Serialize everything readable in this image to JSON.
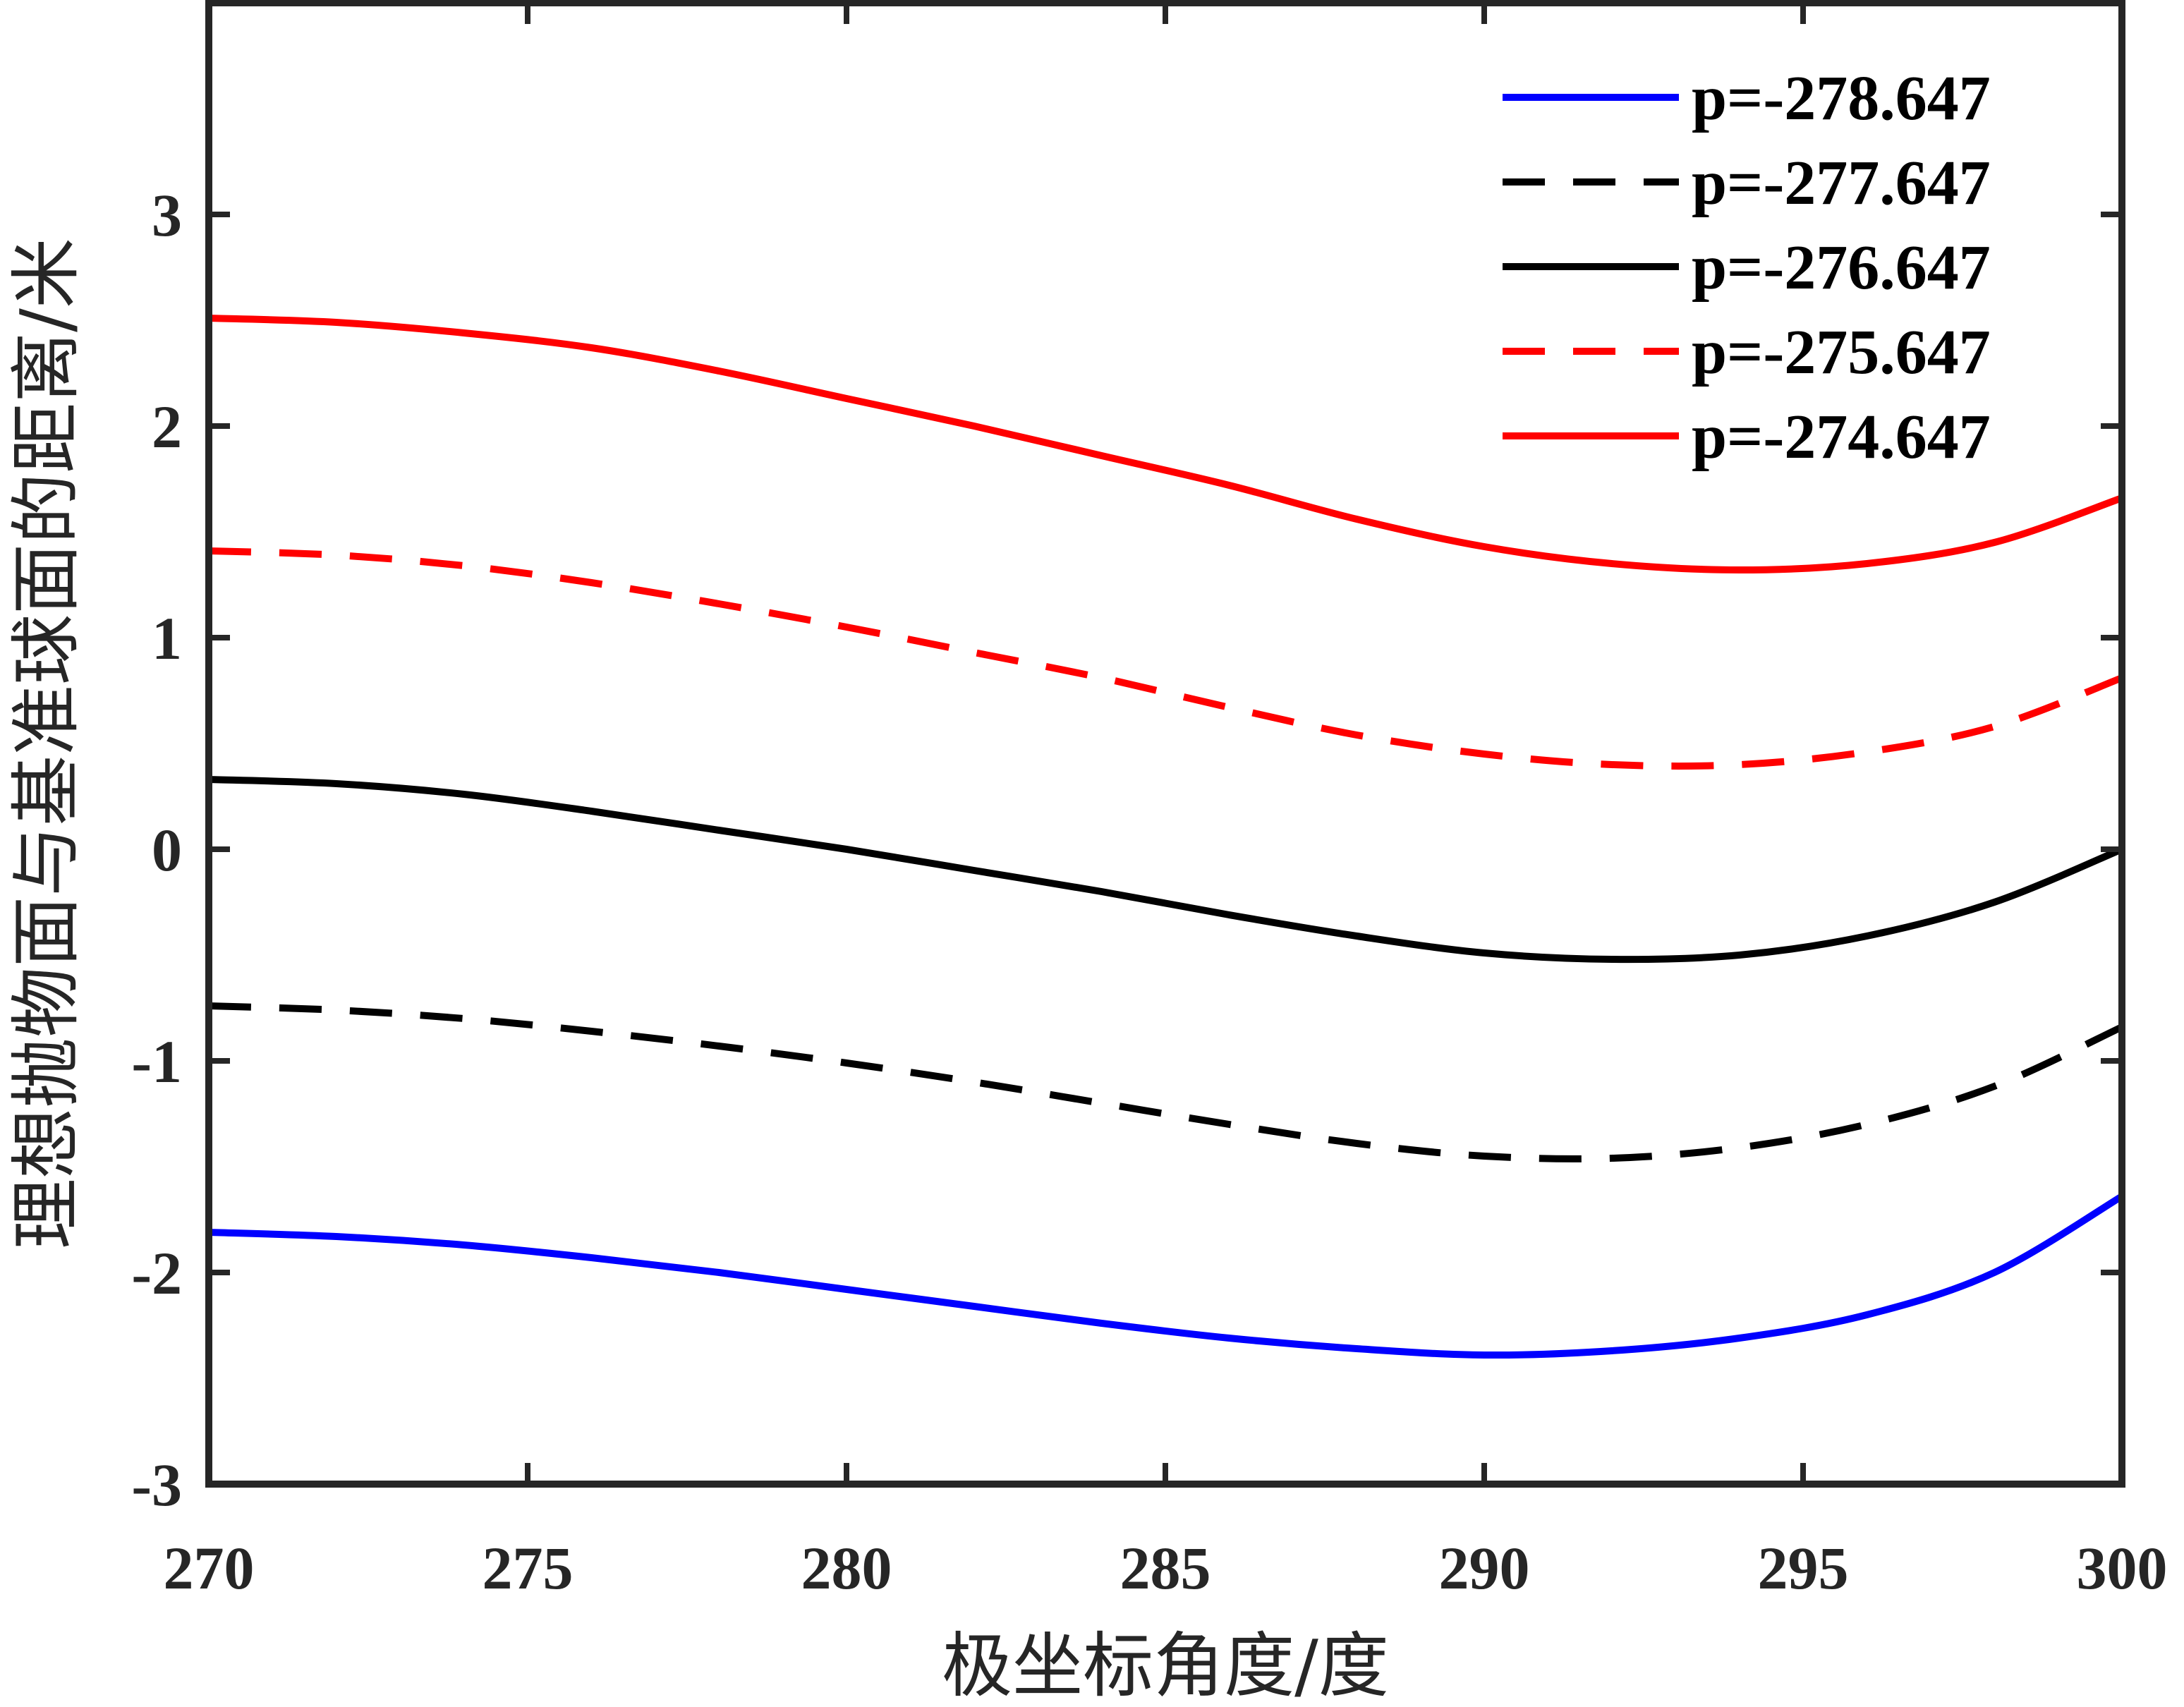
{
  "chart_data": {
    "type": "line",
    "title": "",
    "xlabel": "极坐标角度/度",
    "ylabel": "理想抛物面与基准球面的距离/米",
    "xlim": [
      270,
      300
    ],
    "ylim": [
      -3,
      4
    ],
    "xticks": [
      "270",
      "275",
      "280",
      "285",
      "290",
      "295",
      "300"
    ],
    "yticks": [
      "-3",
      "-2",
      "-1",
      "0",
      "1",
      "2",
      "3"
    ],
    "grid": false,
    "legend_position": "top-right",
    "series": [
      {
        "name": "p=-278.647",
        "color": "#0000ff",
        "dash": "solid",
        "x": [
          270,
          272,
          274,
          276,
          278,
          280,
          282,
          284,
          286,
          288,
          290,
          292,
          294,
          296,
          298,
          300
        ],
        "y": [
          -1.81,
          -1.83,
          -1.87,
          -1.93,
          -2.0,
          -2.08,
          -2.16,
          -2.24,
          -2.31,
          -2.36,
          -2.39,
          -2.37,
          -2.31,
          -2.2,
          -2.0,
          -1.64
        ]
      },
      {
        "name": "p=-277.647",
        "color": "#000000",
        "dash": "dashed",
        "x": [
          270,
          272,
          274,
          276,
          278,
          280,
          282,
          284,
          286,
          288,
          290,
          292,
          294,
          296,
          298,
          300
        ],
        "y": [
          -0.74,
          -0.76,
          -0.8,
          -0.86,
          -0.93,
          -1.01,
          -1.1,
          -1.2,
          -1.3,
          -1.39,
          -1.45,
          -1.46,
          -1.41,
          -1.3,
          -1.12,
          -0.84
        ]
      },
      {
        "name": "p=-276.647",
        "color": "#000000",
        "dash": "solid",
        "x": [
          270,
          272,
          274,
          276,
          278,
          280,
          282,
          284,
          286,
          288,
          290,
          292,
          294,
          296,
          298,
          300
        ],
        "y": [
          0.33,
          0.31,
          0.26,
          0.18,
          0.09,
          0.0,
          -0.1,
          -0.2,
          -0.31,
          -0.41,
          -0.49,
          -0.52,
          -0.5,
          -0.41,
          -0.25,
          0.0
        ]
      },
      {
        "name": "p=-275.647",
        "color": "#ff0000",
        "dash": "dashed",
        "x": [
          270,
          272,
          274,
          276,
          278,
          280,
          282,
          284,
          286,
          288,
          290,
          292,
          294,
          296,
          298,
          300
        ],
        "y": [
          1.41,
          1.39,
          1.34,
          1.26,
          1.16,
          1.05,
          0.93,
          0.81,
          0.67,
          0.54,
          0.45,
          0.4,
          0.4,
          0.46,
          0.58,
          0.81
        ]
      },
      {
        "name": "p=-274.647",
        "color": "#ff0000",
        "dash": "solid",
        "x": [
          270,
          272,
          274,
          276,
          278,
          280,
          282,
          284,
          286,
          288,
          290,
          292,
          294,
          296,
          298,
          300
        ],
        "y": [
          2.51,
          2.49,
          2.44,
          2.37,
          2.26,
          2.13,
          2.0,
          1.86,
          1.72,
          1.56,
          1.43,
          1.35,
          1.32,
          1.35,
          1.45,
          1.66
        ]
      }
    ]
  }
}
